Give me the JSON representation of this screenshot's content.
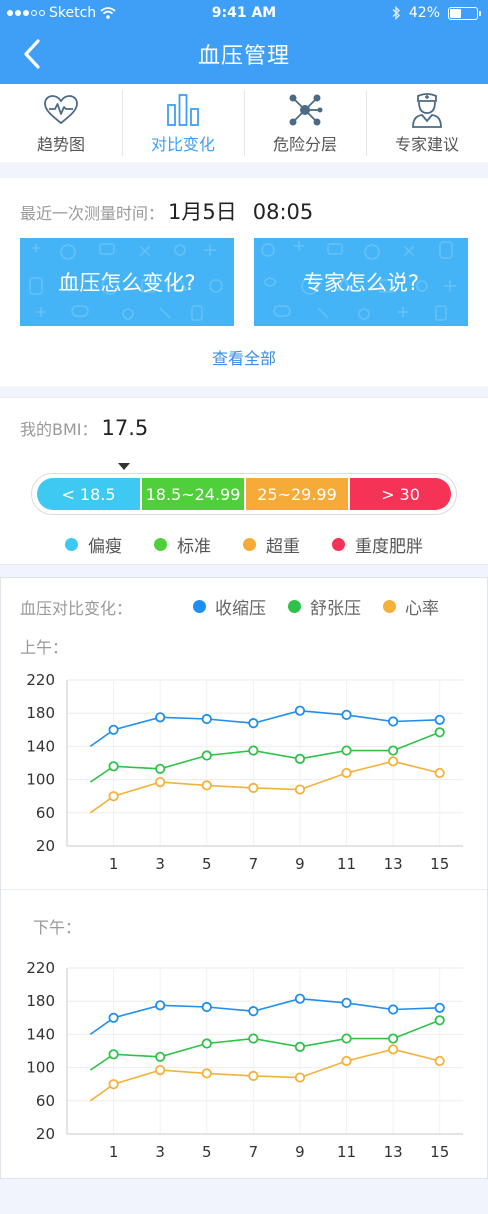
{
  "status_bar": {
    "carrier": "Sketch",
    "time": "9:41 AM",
    "battery": "42%",
    "battery_level": 0.42
  },
  "nav": {
    "title": "血压管理",
    "back_icon": "chevron-left-icon"
  },
  "tabs": [
    {
      "label": "趋势图",
      "icon": "heart-pulse-icon",
      "active": false
    },
    {
      "label": "对比变化",
      "icon": "bar-chart-icon",
      "active": true
    },
    {
      "label": "危险分层",
      "icon": "network-nodes-icon",
      "active": false
    },
    {
      "label": "专家建议",
      "icon": "doctor-icon",
      "active": false
    }
  ],
  "measure": {
    "label": "最近一次测量时间：",
    "date": "1月5日",
    "time": "08:05",
    "banner1": "血压怎么变化?",
    "banner2": "专家怎么说?",
    "view_all": "查看全部"
  },
  "bmi": {
    "label": "我的BMI：",
    "value": "17.5",
    "segments": [
      {
        "label": "< 18.5",
        "color": "#3ec9f2"
      },
      {
        "label": "18.5~24.99",
        "color": "#4fcf3a"
      },
      {
        "label": "25~29.99",
        "color": "#f6aa37"
      },
      {
        "label": "> 30",
        "color": "#f43356"
      }
    ],
    "legend": [
      {
        "label": "偏瘦",
        "color": "#3ec9f2"
      },
      {
        "label": "标准",
        "color": "#4fcf3a"
      },
      {
        "label": "超重",
        "color": "#f6aa37"
      },
      {
        "label": "重度肥胖",
        "color": "#f43356"
      }
    ]
  },
  "bp": {
    "title": "血压对比变化：",
    "legend": [
      {
        "label": "收缩压",
        "color": "#1e8fee"
      },
      {
        "label": "舒张压",
        "color": "#2ec24a"
      },
      {
        "label": "心率",
        "color": "#f5b13a"
      }
    ],
    "am_label": "上午：",
    "pm_label": "下午："
  },
  "chart_data": [
    {
      "type": "line",
      "title": "上午：",
      "x": [
        0,
        1,
        3,
        5,
        7,
        9,
        11,
        13,
        15
      ],
      "xticks": [
        1,
        3,
        5,
        7,
        9,
        11,
        13,
        15
      ],
      "yticks": [
        20,
        60,
        100,
        140,
        180,
        220
      ],
      "ylim": [
        20,
        220
      ],
      "xlim": [
        -1,
        16
      ],
      "grid": true,
      "series": [
        {
          "name": "收缩压",
          "color": "#1e8fee",
          "values": [
            140,
            160,
            175,
            173,
            168,
            183,
            178,
            170,
            172
          ]
        },
        {
          "name": "舒张压",
          "color": "#2ec24a",
          "values": [
            97,
            116,
            113,
            129,
            135,
            125,
            135,
            135,
            157
          ]
        },
        {
          "name": "心率",
          "color": "#f5b13a",
          "values": [
            60,
            80,
            97,
            93,
            90,
            88,
            108,
            122,
            108
          ]
        }
      ]
    },
    {
      "type": "line",
      "title": "下午：",
      "x": [
        0,
        1,
        3,
        5,
        7,
        9,
        11,
        13,
        15
      ],
      "xticks": [
        1,
        3,
        5,
        7,
        9,
        11,
        13,
        15
      ],
      "yticks": [
        20,
        60,
        100,
        140,
        180,
        220
      ],
      "ylim": [
        20,
        220
      ],
      "xlim": [
        -1,
        16
      ],
      "grid": true,
      "series": [
        {
          "name": "收缩压",
          "color": "#1e8fee",
          "values": [
            140,
            160,
            175,
            173,
            168,
            183,
            178,
            170,
            172
          ]
        },
        {
          "name": "舒张压",
          "color": "#2ec24a",
          "values": [
            97,
            116,
            113,
            129,
            135,
            125,
            135,
            135,
            157
          ]
        },
        {
          "name": "心率",
          "color": "#f5b13a",
          "values": [
            60,
            80,
            97,
            93,
            90,
            88,
            108,
            122,
            108
          ]
        }
      ]
    }
  ]
}
